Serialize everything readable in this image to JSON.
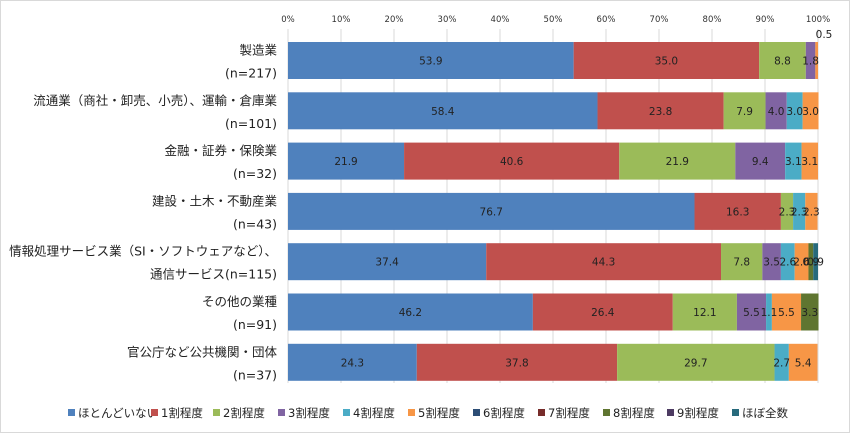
{
  "chart_data": {
    "type": "bar",
    "orientation": "horizontal",
    "stacked": true,
    "xlim": [
      0,
      100
    ],
    "x_ticks": [
      "0%",
      "10%",
      "20%",
      "30%",
      "40%",
      "50%",
      "60%",
      "70%",
      "80%",
      "90%",
      "100%"
    ],
    "grid": true,
    "legend_position": "bottom",
    "categories": [
      {
        "line1": "製造業",
        "line2": "(n=217)"
      },
      {
        "line1": "流通業（商社・卸売、小売）、運輸・倉庫業",
        "line2": "(n=101)"
      },
      {
        "line1": "金融・証券・保険業",
        "line2": "(n=32)"
      },
      {
        "line1": "建設・土木・不動産業",
        "line2": "(n=43)"
      },
      {
        "line1": "情報処理サービス業（SI・ソフトウェアなど）、",
        "line2": "通信サービス(n=115)"
      },
      {
        "line1": "その他の業種",
        "line2": "(n=91)"
      },
      {
        "line1": "官公庁など公共機関・団体",
        "line2": "(n=37)"
      }
    ],
    "series": [
      {
        "name": "ほとんどいない",
        "color": "#4f81bd",
        "values": [
          53.9,
          58.4,
          21.9,
          76.7,
          37.4,
          46.2,
          24.3
        ]
      },
      {
        "name": "1割程度",
        "color": "#c0504d",
        "values": [
          35.0,
          23.8,
          40.6,
          16.3,
          44.3,
          26.4,
          37.8
        ]
      },
      {
        "name": "2割程度",
        "color": "#9bbb59",
        "values": [
          8.8,
          7.9,
          21.9,
          2.3,
          7.8,
          12.1,
          29.7
        ]
      },
      {
        "name": "3割程度",
        "color": "#8064a2",
        "values": [
          1.8,
          4.0,
          9.4,
          0,
          3.5,
          5.5,
          0
        ]
      },
      {
        "name": "4割程度",
        "color": "#4bacc6",
        "values": [
          0,
          3.0,
          3.1,
          2.3,
          2.6,
          1.1,
          2.7
        ]
      },
      {
        "name": "5割程度",
        "color": "#f79646",
        "values": [
          0.5,
          3.0,
          3.1,
          2.3,
          2.6,
          5.5,
          5.4
        ]
      },
      {
        "name": "6割程度",
        "color": "#2c4d75",
        "values": [
          0,
          0,
          0,
          0,
          0,
          0,
          0
        ]
      },
      {
        "name": "7割程度",
        "color": "#772c2a",
        "values": [
          0,
          0,
          0,
          0,
          0,
          0,
          0
        ]
      },
      {
        "name": "8割程度",
        "color": "#5f7530",
        "values": [
          0,
          0,
          0,
          0,
          0.9,
          3.3,
          0
        ]
      },
      {
        "name": "9割程度",
        "color": "#4d3b62",
        "values": [
          0,
          0,
          0,
          0,
          0,
          0,
          0
        ]
      },
      {
        "name": "ほぼ全数",
        "color": "#276a7c",
        "values": [
          0,
          0,
          0,
          0,
          0.9,
          0,
          0
        ]
      }
    ],
    "data_labels": [
      [
        "53.9",
        "35.0",
        "8.8",
        "1.8",
        "",
        "0.5",
        "",
        "",
        "",
        "",
        ""
      ],
      [
        "58.4",
        "23.8",
        "7.9",
        "4.0",
        "3.0",
        "3.0",
        "",
        "",
        "",
        "",
        ""
      ],
      [
        "21.9",
        "40.6",
        "21.9",
        "9.4",
        "3.1",
        "3.1",
        "",
        "",
        "",
        "",
        ""
      ],
      [
        "76.7",
        "16.3",
        "2.3",
        "",
        "2.3",
        "2.3",
        "",
        "",
        "",
        "",
        ""
      ],
      [
        "37.4",
        "44.3",
        "7.8",
        "3.5",
        "2.6",
        "2.6",
        "",
        "",
        "0.9",
        "",
        "0.9"
      ],
      [
        "46.2",
        "26.4",
        "12.1",
        "5.5",
        "1.1",
        "5.5",
        "",
        "",
        "3.3",
        "",
        ""
      ],
      [
        "24.3",
        "37.8",
        "29.7",
        "",
        "2.7",
        "5.4",
        "",
        "",
        "",
        "",
        ""
      ]
    ]
  }
}
